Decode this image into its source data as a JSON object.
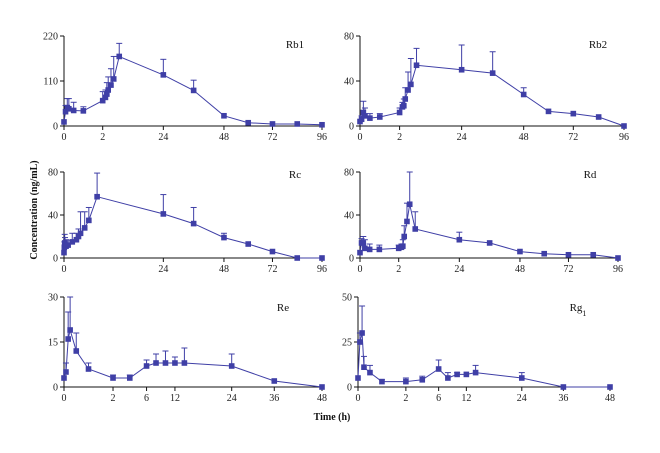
{
  "figure": {
    "ylabel": "Concentration (ng/mL)",
    "xlabel": "Time (h)",
    "series_color": "#3f3fa6"
  },
  "chart_data": [
    {
      "type": "line",
      "panel_label": "Rb1",
      "xtick_labels": [
        "0",
        "2",
        "24",
        "48",
        "72",
        "96"
      ],
      "ytick_labels": [
        "0",
        "110",
        "220"
      ],
      "ylim": [
        0,
        220
      ],
      "x": [
        "0",
        "0.08",
        "0.17",
        "0.25",
        "0.5",
        "1",
        "2",
        "3",
        "3.5",
        "4",
        "5",
        "6",
        "8",
        "24",
        "36",
        "48",
        "60",
        "72",
        "84",
        "96"
      ],
      "y": [
        10,
        35,
        45,
        42,
        38,
        37,
        62,
        70,
        78,
        88,
        100,
        115,
        170,
        125,
        87,
        25,
        8,
        5,
        5,
        3
      ],
      "error_plus": [
        0,
        15,
        22,
        25,
        20,
        10,
        22,
        18,
        28,
        32,
        40,
        55,
        32,
        38,
        25,
        0,
        0,
        0,
        0,
        0
      ]
    },
    {
      "type": "line",
      "panel_label": "Rb2",
      "xtick_labels": [
        "0",
        "2",
        "24",
        "48",
        "72",
        "96"
      ],
      "ytick_labels": [
        "0",
        "40",
        "80"
      ],
      "ylim": [
        0,
        80
      ],
      "x": [
        "0",
        "0.08",
        "0.17",
        "0.25",
        "0.5",
        "1",
        "2",
        "3",
        "3.5",
        "4",
        "5",
        "6",
        "8",
        "24",
        "36",
        "48",
        "60",
        "72",
        "84",
        "96"
      ],
      "y": [
        4,
        6,
        12,
        9,
        7,
        8,
        12,
        17,
        18,
        24,
        32,
        37,
        54,
        50,
        47,
        28,
        13,
        11,
        8,
        0
      ],
      "error_plus": [
        0,
        3,
        10,
        7,
        4,
        3,
        4,
        4,
        6,
        10,
        16,
        23,
        15,
        22,
        19,
        6,
        0,
        0,
        0,
        0
      ]
    },
    {
      "type": "line",
      "panel_label": "Rc",
      "xtick_labels": [
        "0",
        "24",
        "48",
        "72",
        "96"
      ],
      "ytick_labels": [
        "0",
        "40",
        "80"
      ],
      "ylim": [
        0,
        80
      ],
      "x": [
        "0",
        "0.08",
        "0.17",
        "0.25",
        "0.5",
        "1",
        "2",
        "3",
        "3.5",
        "4",
        "5",
        "6",
        "8",
        "24",
        "36",
        "48",
        "60",
        "72",
        "84",
        "96"
      ],
      "y": [
        5,
        10,
        14,
        12,
        11,
        12,
        15,
        17,
        20,
        23,
        28,
        35,
        57,
        41,
        32,
        19,
        13,
        6,
        0,
        0
      ],
      "error_plus": [
        0,
        5,
        8,
        7,
        6,
        4,
        8,
        6,
        7,
        20,
        15,
        12,
        22,
        18,
        15,
        4,
        0,
        0,
        0,
        0
      ]
    },
    {
      "type": "line",
      "panel_label": "Rd",
      "xtick_labels": [
        "0",
        "2",
        "24",
        "48",
        "72",
        "96"
      ],
      "ytick_labels": [
        "0",
        "40",
        "80"
      ],
      "ylim": [
        0,
        80
      ],
      "x": [
        "0",
        "0.08",
        "0.17",
        "0.25",
        "0.5",
        "1",
        "2",
        "3",
        "3.5",
        "4",
        "5",
        "6",
        "8",
        "24",
        "36",
        "48",
        "60",
        "72",
        "84",
        "96"
      ],
      "y": [
        5,
        14,
        14,
        9,
        8,
        8,
        9,
        10,
        11,
        20,
        34,
        50,
        27,
        17,
        14,
        6,
        4,
        3,
        3,
        0
      ],
      "error_plus": [
        0,
        4,
        6,
        8,
        5,
        4,
        3,
        3,
        6,
        10,
        17,
        30,
        16,
        7,
        0,
        0,
        0,
        0,
        0,
        0
      ]
    },
    {
      "type": "line",
      "panel_label": "Re",
      "xtick_labels": [
        "0",
        "2",
        "6",
        "12",
        "24",
        "36",
        "48"
      ],
      "ytick_labels": [
        "0",
        "15",
        "30"
      ],
      "ylim": [
        0,
        30
      ],
      "x": [
        "0",
        "0.08",
        "0.17",
        "0.25",
        "0.5",
        "1",
        "2",
        "4",
        "6",
        "8",
        "10",
        "12",
        "14",
        "24",
        "36",
        "48"
      ],
      "y": [
        3,
        5,
        16,
        19,
        12,
        6,
        3,
        3,
        7,
        8,
        8,
        8,
        8,
        7,
        2,
        0
      ],
      "error_plus": [
        0,
        3,
        9,
        11,
        6,
        2,
        1,
        1,
        2,
        3,
        4,
        2,
        5,
        4,
        0,
        0
      ]
    },
    {
      "type": "line",
      "panel_label": "Rg1",
      "panel_label_main": "Rg",
      "panel_label_sub": "1",
      "xtick_labels": [
        "0",
        "2",
        "6",
        "12",
        "24",
        "36",
        "48"
      ],
      "ytick_labels": [
        "0",
        "25",
        "50"
      ],
      "ylim": [
        0,
        50
      ],
      "x": [
        "0",
        "0.08",
        "0.17",
        "0.25",
        "0.5",
        "1",
        "2",
        "4",
        "6",
        "8",
        "10",
        "12",
        "14",
        "24",
        "36",
        "48"
      ],
      "y": [
        5,
        25,
        30,
        11,
        8,
        3,
        3,
        4,
        10,
        5,
        7,
        7,
        8,
        5,
        0,
        0
      ],
      "error_plus": [
        0,
        5,
        15,
        6,
        4,
        1,
        2,
        2,
        5,
        3,
        1,
        0,
        4,
        3,
        0,
        0
      ]
    }
  ]
}
